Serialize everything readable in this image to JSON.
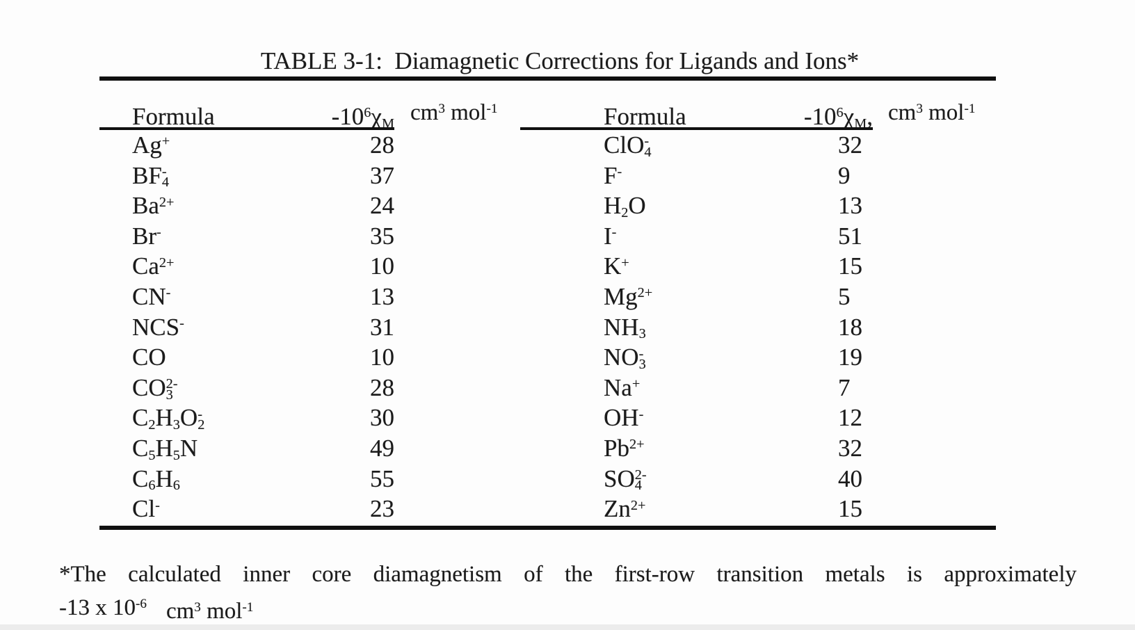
{
  "page": {
    "title": "TABLE 3-1:  Diamagnetic Corrections for Ligands and Ions*"
  },
  "table": {
    "left": {
      "headers": {
        "formula": "Formula",
        "chi": "-10^6^χ_M_",
        "units": "cm^3^ mol^-1^"
      },
      "rows": [
        {
          "formula": "Ag^+^",
          "value": "28"
        },
        {
          "formula": "BF_4_^-^",
          "value": "37"
        },
        {
          "formula": "Ba^2+^",
          "value": "24"
        },
        {
          "formula": "Br^-^",
          "value": "35"
        },
        {
          "formula": "Ca^2+^",
          "value": "10"
        },
        {
          "formula": "CN^-^",
          "value": "13"
        },
        {
          "formula": "NCS^-^",
          "value": "31"
        },
        {
          "formula": "CO",
          "value": "10"
        },
        {
          "formula": "CO_3_^2-^",
          "value": "28"
        },
        {
          "formula": "C_2_H_3_O_2_^-^",
          "value": "30"
        },
        {
          "formula": "C_5_H_5_N",
          "value": "49"
        },
        {
          "formula": "C_6_H_6_",
          "value": "55"
        },
        {
          "formula": "Cl^-^",
          "value": "23"
        }
      ]
    },
    "right": {
      "headers": {
        "formula": "Formula",
        "chi": "-10^6^χ_M_,",
        "units": "cm^3^ mol^-1^"
      },
      "rows": [
        {
          "formula": "ClO_4_^-^",
          "value": "32"
        },
        {
          "formula": "F^-^",
          "value": "9"
        },
        {
          "formula": "H_2_O",
          "value": "13"
        },
        {
          "formula": "I^-^",
          "value": "51"
        },
        {
          "formula": "K^+^",
          "value": "15"
        },
        {
          "formula": "Mg^2+^",
          "value": "5"
        },
        {
          "formula": "NH_3_",
          "value": "18"
        },
        {
          "formula": "NO_3_^-^",
          "value": "19"
        },
        {
          "formula": "Na^+^",
          "value": "7"
        },
        {
          "formula": "OH^-^",
          "value": "12"
        },
        {
          "formula": "Pb^2+^",
          "value": "32"
        },
        {
          "formula": "SO_4_^2-^",
          "value": "40"
        },
        {
          "formula": "Zn^2+^",
          "value": "15"
        }
      ]
    }
  },
  "footnote": {
    "line1": "*The calculated inner core diamagnetism of the first-row transition  metals is approximately",
    "line2_value": "-13 x 10^-6^",
    "line2_units": "cm^3^ mol^-1^"
  }
}
